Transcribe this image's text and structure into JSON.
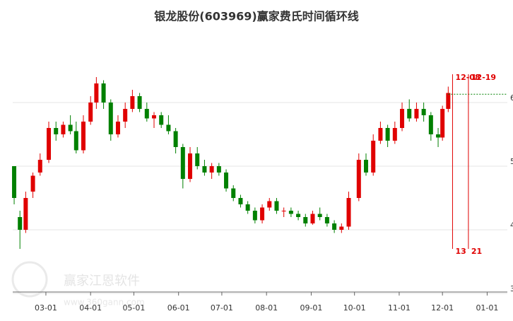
{
  "chart_data": {
    "type": "candlestick",
    "title": "银龙股份(603969)赢家费氏时间循环线",
    "watermark": "赢家江恩软件",
    "watermark_url": "www.360gann.com",
    "x": [
      "02-07",
      "02-11",
      "02-15",
      "02-20",
      "02-25",
      "03-03",
      "03-08",
      "03-13",
      "03-18",
      "03-22",
      "03-27",
      "04-01",
      "04-05",
      "04-10",
      "04-15",
      "04-20",
      "04-25",
      "04-30",
      "05-05",
      "05-10",
      "05-15",
      "05-20",
      "05-25",
      "05-30",
      "06-04",
      "06-09",
      "06-14",
      "06-19",
      "06-24",
      "06-29",
      "07-04",
      "07-09",
      "07-14",
      "07-19",
      "07-24",
      "07-29",
      "08-03",
      "08-08",
      "08-13",
      "08-18",
      "08-23",
      "08-28",
      "09-02",
      "09-07",
      "09-12",
      "09-17",
      "09-22",
      "09-27",
      "10-04",
      "10-09",
      "10-14",
      "10-19",
      "10-24",
      "10-29",
      "11-03",
      "11-08",
      "11-13",
      "11-18",
      "11-23",
      "11-28",
      "12-01",
      "12-05"
    ],
    "open": [
      5.0,
      4.2,
      4.0,
      4.6,
      4.9,
      5.1,
      5.6,
      5.5,
      5.65,
      5.55,
      5.25,
      5.7,
      6.0,
      6.3,
      6.0,
      5.5,
      5.7,
      5.9,
      6.1,
      5.9,
      5.75,
      5.8,
      5.65,
      5.55,
      5.3,
      4.8,
      5.2,
      5.0,
      4.9,
      5.0,
      4.9,
      4.65,
      4.5,
      4.4,
      4.3,
      4.15,
      4.35,
      4.45,
      4.3,
      4.3,
      4.25,
      4.2,
      4.1,
      4.25,
      4.2,
      4.1,
      4.0,
      4.05,
      4.5,
      5.1,
      4.9,
      5.4,
      5.6,
      5.4,
      5.6,
      5.9,
      5.75,
      5.9,
      5.8,
      5.5,
      5.45,
      5.9
    ],
    "high": [
      5.0,
      4.3,
      4.6,
      4.9,
      5.2,
      5.7,
      5.7,
      5.7,
      5.8,
      5.7,
      5.8,
      6.1,
      6.4,
      6.35,
      6.05,
      5.8,
      6.0,
      6.2,
      6.15,
      6.0,
      5.85,
      5.85,
      5.8,
      5.6,
      5.35,
      5.3,
      5.3,
      5.1,
      5.05,
      5.05,
      4.95,
      4.7,
      4.55,
      4.45,
      4.35,
      4.4,
      4.5,
      4.5,
      4.35,
      4.35,
      4.3,
      4.25,
      4.3,
      4.35,
      4.25,
      4.15,
      4.1,
      4.6,
      5.2,
      5.2,
      5.5,
      5.7,
      5.65,
      5.7,
      6.0,
      6.05,
      6.0,
      6.0,
      5.85,
      5.6,
      5.95,
      6.25
    ],
    "low": [
      4.4,
      3.7,
      3.95,
      4.5,
      4.85,
      5.05,
      5.4,
      5.45,
      5.5,
      5.2,
      5.2,
      5.65,
      5.9,
      5.9,
      5.4,
      5.45,
      5.6,
      5.85,
      5.85,
      5.7,
      5.6,
      5.6,
      5.5,
      5.2,
      4.65,
      4.75,
      4.95,
      4.85,
      4.8,
      4.85,
      4.6,
      4.45,
      4.35,
      4.25,
      4.1,
      4.1,
      4.3,
      4.25,
      4.2,
      4.2,
      4.15,
      4.05,
      4.08,
      4.15,
      4.05,
      3.95,
      3.95,
      4.0,
      4.45,
      4.85,
      4.85,
      5.35,
      5.3,
      5.35,
      5.55,
      5.7,
      5.7,
      5.7,
      5.4,
      5.3,
      5.4,
      5.85
    ],
    "close": [
      4.5,
      4.0,
      4.5,
      4.85,
      5.1,
      5.6,
      5.5,
      5.65,
      5.55,
      5.25,
      5.7,
      6.0,
      6.3,
      6.0,
      5.5,
      5.7,
      5.9,
      6.1,
      5.9,
      5.75,
      5.8,
      5.65,
      5.55,
      5.3,
      4.8,
      5.2,
      5.0,
      4.9,
      5.0,
      4.9,
      4.65,
      4.5,
      4.4,
      4.3,
      4.15,
      4.35,
      4.45,
      4.3,
      4.3,
      4.25,
      4.2,
      4.1,
      4.25,
      4.2,
      4.1,
      4.0,
      4.05,
      4.5,
      5.1,
      4.9,
      5.4,
      5.6,
      5.4,
      5.6,
      5.9,
      5.75,
      5.9,
      5.8,
      5.5,
      5.45,
      5.9,
      6.15
    ],
    "up_color": "#e00000",
    "down_color": "#008000",
    "xticks": [
      "03-01",
      "04-01",
      "05-01",
      "06-01",
      "07-01",
      "08-01",
      "09-01",
      "10-01",
      "11-01",
      "12-01",
      "01-01"
    ],
    "xlim": [
      "02-06",
      "01-15"
    ],
    "ylim": [
      3,
      7
    ],
    "yticks": [
      3,
      4,
      5,
      6
    ],
    "grid": true,
    "reference_line": {
      "value": 6.13,
      "from": "12-05",
      "color": "#008000"
    },
    "cycle_lines": [
      {
        "date": "12-08",
        "count": "13"
      },
      {
        "date": "12-19",
        "count": "21"
      }
    ],
    "cycle_color": "#e00000"
  }
}
